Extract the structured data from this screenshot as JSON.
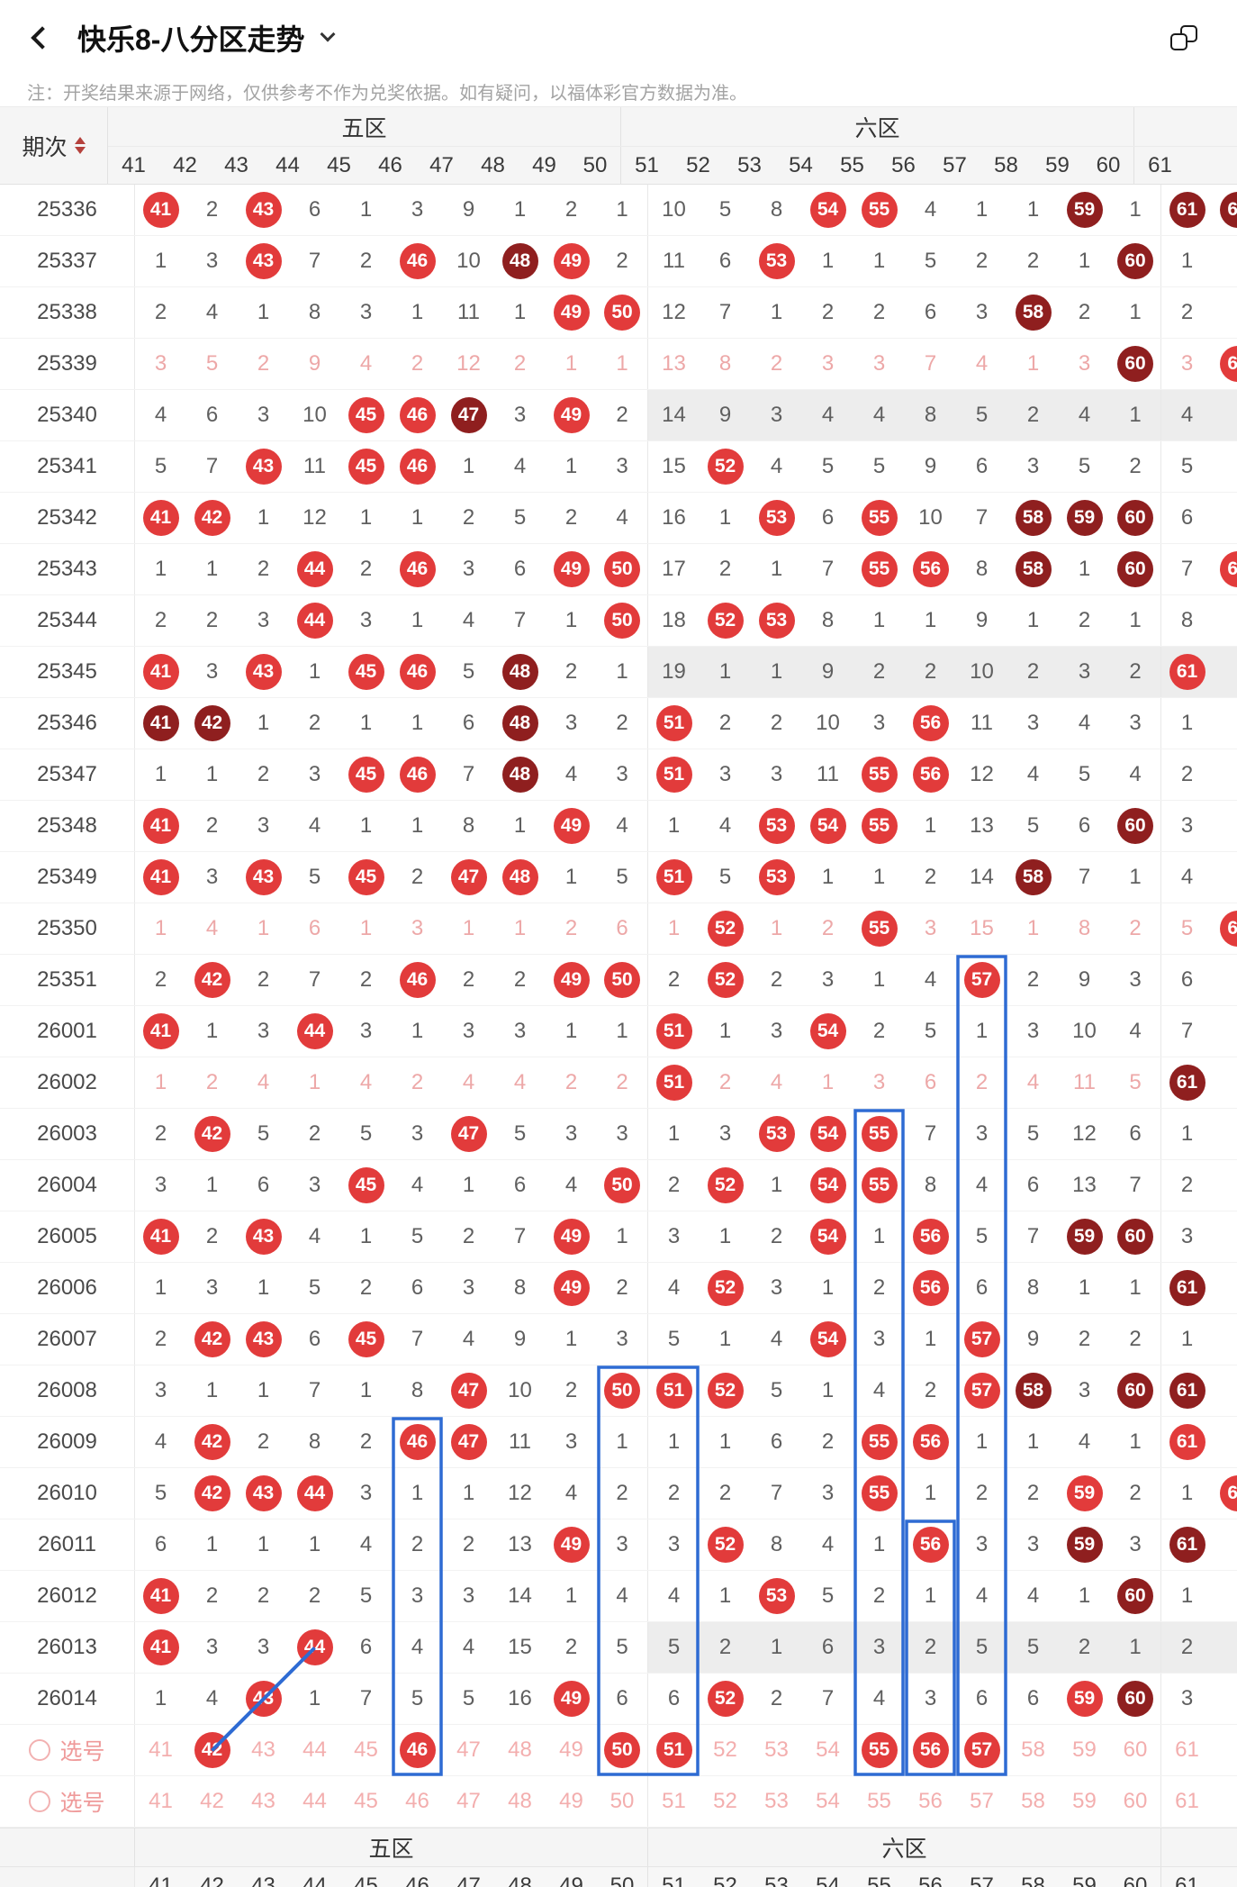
{
  "app": {
    "title": "快乐8-八分区走势",
    "notice": "注：开奖结果来源于网络，仅供参考不作为兑奖依据。如有疑问，以福体彩官方数据为准。"
  },
  "colors": {
    "hit_red": "#e23b3b",
    "hit_dark_red": "#8f1f1f",
    "selection_pink": "#f3aeae",
    "annotation_blue": "#2e6bd3",
    "shade_gray": "#ededed"
  },
  "table": {
    "period_header": "期次",
    "zone_headers": [
      {
        "label": "五区"
      },
      {
        "label": "六区"
      }
    ],
    "columns": [
      "41",
      "42",
      "43",
      "44",
      "45",
      "46",
      "47",
      "48",
      "49",
      "50",
      "51",
      "52",
      "53",
      "54",
      "55",
      "56",
      "57",
      "58",
      "59",
      "60",
      "61"
    ],
    "footer_zones": [
      "五区",
      "六区"
    ],
    "rows": [
      {
        "period": "25336",
        "shade": "",
        "c62": "D",
        "cells": [
          "C41",
          "2",
          "C43",
          "6",
          "1",
          "3",
          "9",
          "1",
          "2",
          "1",
          "10",
          "5",
          "8",
          "C54",
          "C55",
          "4",
          "1",
          "1",
          "D59",
          "1",
          "D61"
        ]
      },
      {
        "period": "25337",
        "shade": "",
        "c62": "",
        "cells": [
          "1",
          "3",
          "C43",
          "7",
          "2",
          "C46",
          "10",
          "D48",
          "C49",
          "2",
          "11",
          "6",
          "C53",
          "1",
          "1",
          "5",
          "2",
          "2",
          "1",
          "D60",
          "1"
        ]
      },
      {
        "period": "25338",
        "shade": "",
        "c62": "",
        "cells": [
          "2",
          "4",
          "1",
          "8",
          "3",
          "1",
          "11",
          "1",
          "C49",
          "C50",
          "12",
          "7",
          "1",
          "2",
          "2",
          "6",
          "3",
          "D58",
          "2",
          "1",
          "2"
        ]
      },
      {
        "period": "25339",
        "shade": "pink",
        "c62": "C",
        "cells": [
          "3",
          "5",
          "2",
          "9",
          "4",
          "2",
          "12",
          "2",
          "1",
          "1",
          "13",
          "8",
          "2",
          "3",
          "3",
          "7",
          "4",
          "1",
          "3",
          "D60",
          "3"
        ]
      },
      {
        "period": "25340",
        "shade": "gray",
        "c62": "",
        "cells": [
          "4",
          "6",
          "3",
          "10",
          "C45",
          "C46",
          "D47",
          "3",
          "C49",
          "2",
          "14",
          "9",
          "3",
          "4",
          "4",
          "8",
          "5",
          "2",
          "4",
          "1",
          "4"
        ]
      },
      {
        "period": "25341",
        "shade": "",
        "c62": "",
        "cells": [
          "5",
          "7",
          "C43",
          "11",
          "C45",
          "C46",
          "1",
          "4",
          "1",
          "3",
          "15",
          "C52",
          "4",
          "5",
          "5",
          "9",
          "6",
          "3",
          "5",
          "2",
          "5"
        ]
      },
      {
        "period": "25342",
        "shade": "",
        "c62": "",
        "cells": [
          "C41",
          "C42",
          "1",
          "12",
          "1",
          "1",
          "2",
          "5",
          "2",
          "4",
          "16",
          "1",
          "C53",
          "6",
          "C55",
          "10",
          "7",
          "D58",
          "D59",
          "D60",
          "6"
        ]
      },
      {
        "period": "25343",
        "shade": "",
        "c62": "C",
        "cells": [
          "1",
          "1",
          "2",
          "C44",
          "2",
          "C46",
          "3",
          "6",
          "C49",
          "C50",
          "17",
          "2",
          "1",
          "7",
          "C55",
          "C56",
          "8",
          "D58",
          "1",
          "D60",
          "7"
        ]
      },
      {
        "period": "25344",
        "shade": "",
        "c62": "",
        "cells": [
          "2",
          "2",
          "3",
          "C44",
          "3",
          "1",
          "4",
          "7",
          "1",
          "C50",
          "18",
          "C52",
          "C53",
          "8",
          "1",
          "1",
          "9",
          "1",
          "2",
          "1",
          "8"
        ]
      },
      {
        "period": "25345",
        "shade": "gray",
        "c62": "",
        "cells": [
          "C41",
          "3",
          "C43",
          "1",
          "C45",
          "C46",
          "5",
          "D48",
          "2",
          "1",
          "19",
          "1",
          "1",
          "9",
          "2",
          "2",
          "10",
          "2",
          "3",
          "2",
          "C61"
        ]
      },
      {
        "period": "25346",
        "shade": "",
        "c62": "",
        "cells": [
          "D41",
          "D42",
          "1",
          "2",
          "1",
          "1",
          "6",
          "D48",
          "3",
          "2",
          "C51",
          "2",
          "2",
          "10",
          "3",
          "C56",
          "11",
          "3",
          "4",
          "3",
          "1"
        ]
      },
      {
        "period": "25347",
        "shade": "",
        "c62": "",
        "cells": [
          "1",
          "1",
          "2",
          "3",
          "C45",
          "C46",
          "7",
          "D48",
          "4",
          "3",
          "C51",
          "3",
          "3",
          "11",
          "C55",
          "C56",
          "12",
          "4",
          "5",
          "4",
          "2"
        ]
      },
      {
        "period": "25348",
        "shade": "",
        "c62": "",
        "cells": [
          "C41",
          "2",
          "3",
          "4",
          "1",
          "1",
          "8",
          "1",
          "C49",
          "4",
          "1",
          "4",
          "C53",
          "C54",
          "C55",
          "1",
          "13",
          "5",
          "6",
          "D60",
          "3"
        ]
      },
      {
        "period": "25349",
        "shade": "",
        "c62": "",
        "cells": [
          "C41",
          "3",
          "C43",
          "5",
          "C45",
          "2",
          "C47",
          "C48",
          "1",
          "5",
          "C51",
          "5",
          "C53",
          "1",
          "1",
          "2",
          "14",
          "D58",
          "7",
          "1",
          "4"
        ]
      },
      {
        "period": "25350",
        "shade": "pink",
        "c62": "C",
        "cells": [
          "1",
          "4",
          "1",
          "6",
          "1",
          "3",
          "1",
          "1",
          "2",
          "6",
          "1",
          "C52",
          "1",
          "2",
          "C55",
          "3",
          "15",
          "1",
          "8",
          "2",
          "5"
        ]
      },
      {
        "period": "25351",
        "shade": "",
        "c62": "",
        "cells": [
          "2",
          "C42",
          "2",
          "7",
          "2",
          "C46",
          "2",
          "2",
          "C49",
          "C50",
          "2",
          "C52",
          "2",
          "3",
          "1",
          "4",
          "C57",
          "2",
          "9",
          "3",
          "6"
        ]
      },
      {
        "period": "26001",
        "shade": "",
        "c62": "",
        "cells": [
          "C41",
          "1",
          "3",
          "C44",
          "3",
          "1",
          "3",
          "3",
          "1",
          "1",
          "C51",
          "1",
          "3",
          "C54",
          "2",
          "5",
          "1",
          "3",
          "10",
          "4",
          "7"
        ]
      },
      {
        "period": "26002",
        "shade": "pink",
        "c62": "",
        "cells": [
          "1",
          "2",
          "4",
          "1",
          "4",
          "2",
          "4",
          "4",
          "2",
          "2",
          "C51",
          "2",
          "4",
          "1",
          "3",
          "6",
          "2",
          "4",
          "11",
          "5",
          "D61"
        ]
      },
      {
        "period": "26003",
        "shade": "",
        "c62": "",
        "cells": [
          "2",
          "C42",
          "5",
          "2",
          "5",
          "3",
          "C47",
          "5",
          "3",
          "3",
          "1",
          "3",
          "C53",
          "C54",
          "C55",
          "7",
          "3",
          "5",
          "12",
          "6",
          "1"
        ]
      },
      {
        "period": "26004",
        "shade": "",
        "c62": "",
        "cells": [
          "3",
          "1",
          "6",
          "3",
          "C45",
          "4",
          "1",
          "6",
          "4",
          "C50",
          "2",
          "C52",
          "1",
          "C54",
          "C55",
          "8",
          "4",
          "6",
          "13",
          "7",
          "2"
        ]
      },
      {
        "period": "26005",
        "shade": "",
        "c62": "",
        "cells": [
          "C41",
          "2",
          "C43",
          "4",
          "1",
          "5",
          "2",
          "7",
          "C49",
          "1",
          "3",
          "1",
          "2",
          "C54",
          "1",
          "C56",
          "5",
          "7",
          "D59",
          "D60",
          "3"
        ]
      },
      {
        "period": "26006",
        "shade": "",
        "c62": "",
        "cells": [
          "1",
          "3",
          "1",
          "5",
          "2",
          "6",
          "3",
          "8",
          "C49",
          "2",
          "4",
          "C52",
          "3",
          "1",
          "2",
          "C56",
          "6",
          "8",
          "1",
          "1",
          "D61"
        ]
      },
      {
        "period": "26007",
        "shade": "",
        "c62": "",
        "cells": [
          "2",
          "C42",
          "C43",
          "6",
          "C45",
          "7",
          "4",
          "9",
          "1",
          "3",
          "5",
          "1",
          "4",
          "C54",
          "3",
          "1",
          "C57",
          "9",
          "2",
          "2",
          "1"
        ]
      },
      {
        "period": "26008",
        "shade": "",
        "c62": "",
        "cells": [
          "3",
          "1",
          "1",
          "7",
          "1",
          "8",
          "C47",
          "10",
          "2",
          "C50",
          "C51",
          "C52",
          "5",
          "1",
          "4",
          "2",
          "C57",
          "D58",
          "3",
          "D60",
          "D61"
        ]
      },
      {
        "period": "26009",
        "shade": "",
        "c62": "",
        "cells": [
          "4",
          "C42",
          "2",
          "8",
          "2",
          "C46",
          "C47",
          "11",
          "3",
          "1",
          "1",
          "1",
          "6",
          "2",
          "C55",
          "C56",
          "1",
          "1",
          "4",
          "1",
          "C61"
        ]
      },
      {
        "period": "26010",
        "shade": "",
        "c62": "C",
        "cells": [
          "5",
          "C42",
          "C43",
          "C44",
          "3",
          "1",
          "1",
          "12",
          "4",
          "2",
          "2",
          "2",
          "7",
          "3",
          "C55",
          "1",
          "2",
          "2",
          "C59",
          "2",
          "1"
        ]
      },
      {
        "period": "26011",
        "shade": "",
        "c62": "",
        "cells": [
          "6",
          "1",
          "1",
          "1",
          "4",
          "2",
          "2",
          "13",
          "C49",
          "3",
          "3",
          "C52",
          "8",
          "4",
          "1",
          "C56",
          "3",
          "3",
          "D59",
          "3",
          "D61"
        ]
      },
      {
        "period": "26012",
        "shade": "",
        "c62": "",
        "cells": [
          "C41",
          "2",
          "2",
          "2",
          "5",
          "3",
          "3",
          "14",
          "1",
          "4",
          "4",
          "1",
          "C53",
          "5",
          "2",
          "1",
          "4",
          "4",
          "1",
          "D60",
          "1"
        ]
      },
      {
        "period": "26013",
        "shade": "gray",
        "c62": "",
        "cells": [
          "C41",
          "3",
          "3",
          "C44",
          "6",
          "4",
          "4",
          "15",
          "2",
          "5",
          "5",
          "2",
          "1",
          "6",
          "3",
          "2",
          "5",
          "5",
          "2",
          "1",
          "2"
        ]
      },
      {
        "period": "26014",
        "shade": "",
        "c62": "",
        "cells": [
          "1",
          "4",
          "C43",
          "1",
          "7",
          "5",
          "5",
          "16",
          "C49",
          "6",
          "6",
          "C52",
          "2",
          "7",
          "4",
          "3",
          "6",
          "6",
          "C59",
          "D60",
          "3"
        ]
      },
      {
        "period": "select-1",
        "type": "select",
        "label": "选号",
        "shade": "",
        "c62": "",
        "cells": [
          "41",
          "C42",
          "43",
          "44",
          "45",
          "C46",
          "47",
          "48",
          "49",
          "C50",
          "C51",
          "52",
          "53",
          "54",
          "C55",
          "C56",
          "C57",
          "58",
          "59",
          "60",
          "61"
        ]
      },
      {
        "period": "select-2",
        "type": "select",
        "label": "选号",
        "shade": "",
        "c62": "",
        "cells": [
          "41",
          "42",
          "43",
          "44",
          "45",
          "46",
          "47",
          "48",
          "49",
          "50",
          "51",
          "52",
          "53",
          "54",
          "55",
          "56",
          "57",
          "58",
          "59",
          "60",
          "61"
        ]
      }
    ]
  },
  "annotations": {
    "color": "#2e6bd3",
    "boxes": [
      {
        "col": 57,
        "span": 1,
        "from": "25351"
      },
      {
        "col": 55,
        "span": 1,
        "from": "26003"
      },
      {
        "col": 50,
        "span": 2,
        "from": "26008"
      },
      {
        "col": 46,
        "span": 1,
        "from": "26009"
      },
      {
        "col": 56,
        "span": 1,
        "from": "26011"
      }
    ],
    "line": {
      "from_period": "26013",
      "from_col": 44,
      "to_col": 42
    }
  }
}
